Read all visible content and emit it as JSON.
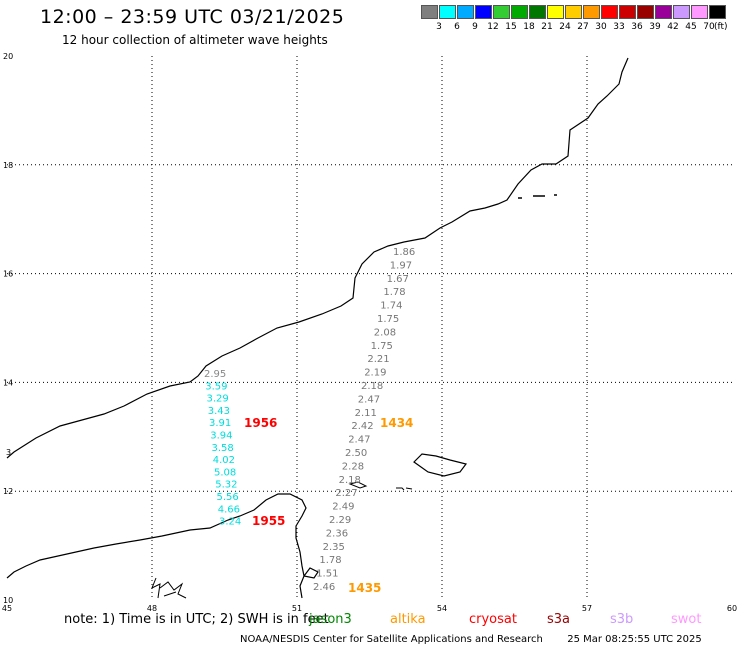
{
  "header": {
    "title": "12:00 – 23:59 UTC 03/21/2025",
    "subtitle": "12 hour collection of altimeter wave heights"
  },
  "legend": {
    "colors": [
      "#7f7f7f",
      "#00ffff",
      "#00aaff",
      "#0000ff",
      "#33cc33",
      "#00aa00",
      "#007700",
      "#ffff00",
      "#ffcc00",
      "#ff9900",
      "#ff0000",
      "#cc0000",
      "#990000",
      "#990099",
      "#cc99ff",
      "#ff99ff",
      "#000000"
    ],
    "ticks": [
      "3",
      "6",
      "9",
      "12",
      "15",
      "18",
      "21",
      "24",
      "27",
      "30",
      "33",
      "36",
      "39",
      "42",
      "45",
      "70"
    ],
    "unit": "(ft)"
  },
  "axes": {
    "x_ticks": [
      "45",
      "48",
      "51",
      "54",
      "57",
      "60"
    ],
    "y_ticks": [
      "10",
      "12",
      "14",
      "16",
      "18",
      "20"
    ]
  },
  "map_labels": {
    "left_edge_marker": "3"
  },
  "tracks": [
    {
      "time": "1956",
      "time_color": "#ff0000",
      "point_color": "#00dddd",
      "first_point_color": "#888888",
      "values": [
        "2.95",
        "3.59",
        "3.29",
        "3.43",
        "3.91",
        "3.94",
        "3.58",
        "4.02",
        "5.08",
        "5.32",
        "5.56",
        "4.66",
        "3.24"
      ],
      "end_time": "1955"
    },
    {
      "time": "1434",
      "time_color": "#ff9900",
      "point_color": "#777777",
      "values": [
        "1.86",
        "1.97",
        "1.67",
        "1.78",
        "1.74",
        "1.75",
        "2.08",
        "1.75",
        "2.21",
        "2.19",
        "2.18",
        "2.47",
        "2.11",
        "2.42",
        "2.47",
        "2.50",
        "2.28",
        "2.18",
        "2.27",
        "2.49",
        "2.29",
        "2.36",
        "2.35",
        "1.78",
        "1.51",
        "2.46"
      ],
      "end_time": "1435"
    }
  ],
  "footer": {
    "note": "note:  1) Time is in UTC;  2) SWH is in feet",
    "satellites": [
      {
        "name": "jason3",
        "color": "#008800"
      },
      {
        "name": "altika",
        "color": "#ff9900"
      },
      {
        "name": "cryosat",
        "color": "#ff0000"
      },
      {
        "name": "s3a",
        "color": "#990000"
      },
      {
        "name": "s3b",
        "color": "#cc99ff"
      },
      {
        "name": "swot",
        "color": "#ff99ff"
      }
    ],
    "credit": "NOAA/NESDIS Center for Satellite Applications and Research",
    "timestamp": "25 Mar 08:25:55 UTC 2025"
  }
}
